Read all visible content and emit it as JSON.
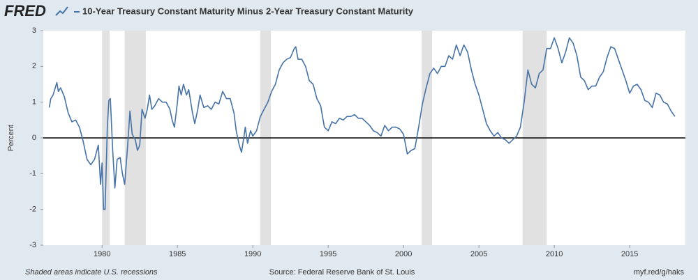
{
  "chart_data": {
    "type": "line",
    "brand": "FRED",
    "title": "10-Year Treasury Constant Maturity Minus 2-Year Treasury Constant Maturity",
    "y_label": "Percent",
    "note": "Shaded areas indicate U.S. recessions",
    "source": "Source: Federal Reserve Bank of St. Louis",
    "link": "myf.red/g/haks",
    "xlim": [
      1976.1,
      2018.7
    ],
    "xticks": [
      1980,
      1985,
      1990,
      1995,
      2000,
      2005,
      2010,
      2015
    ],
    "ylim": [
      -3,
      3
    ],
    "yticks": [
      3,
      2,
      1,
      0,
      -1,
      -2,
      -3
    ],
    "reference_line": 0,
    "recessions": [
      [
        1980.0,
        1980.5
      ],
      [
        1981.5,
        1982.9
      ],
      [
        1990.5,
        1991.2
      ],
      [
        2001.2,
        2001.9
      ],
      [
        2007.9,
        2009.5
      ]
    ],
    "recession_color": "#e1e1e1",
    "x": [
      1976.5,
      1976.6,
      1976.75,
      1977.0,
      1977.1,
      1977.25,
      1977.5,
      1977.75,
      1978.0,
      1978.25,
      1978.5,
      1978.75,
      1979.0,
      1979.25,
      1979.5,
      1979.75,
      1979.9,
      1980.0,
      1980.1,
      1980.2,
      1980.35,
      1980.45,
      1980.55,
      1980.7,
      1980.85,
      1981.0,
      1981.2,
      1981.35,
      1981.5,
      1981.7,
      1981.85,
      1982.0,
      1982.2,
      1982.35,
      1982.5,
      1982.65,
      1982.85,
      1983.0,
      1983.15,
      1983.3,
      1983.5,
      1983.75,
      1984.0,
      1984.25,
      1984.5,
      1984.65,
      1984.8,
      1985.0,
      1985.1,
      1985.25,
      1985.4,
      1985.6,
      1985.75,
      1986.0,
      1986.15,
      1986.35,
      1986.5,
      1986.75,
      1987.0,
      1987.25,
      1987.5,
      1987.75,
      1988.0,
      1988.25,
      1988.5,
      1988.75,
      1988.9,
      1989.1,
      1989.25,
      1989.4,
      1989.5,
      1989.65,
      1989.85,
      1990.0,
      1990.25,
      1990.5,
      1990.75,
      1991.0,
      1991.25,
      1991.5,
      1991.75,
      1992.0,
      1992.25,
      1992.5,
      1992.75,
      1992.85,
      1993.0,
      1993.25,
      1993.5,
      1993.75,
      1994.0,
      1994.25,
      1994.5,
      1994.75,
      1995.0,
      1995.25,
      1995.5,
      1995.75,
      1996.0,
      1996.25,
      1996.5,
      1996.75,
      1997.0,
      1997.25,
      1997.5,
      1997.75,
      1998.0,
      1998.25,
      1998.5,
      1998.75,
      1999.0,
      1999.25,
      1999.5,
      1999.75,
      2000.0,
      2000.25,
      2000.5,
      2000.75,
      2001.0,
      2001.25,
      2001.5,
      2001.75,
      2002.0,
      2002.25,
      2002.5,
      2002.75,
      2003.0,
      2003.25,
      2003.5,
      2003.75,
      2004.0,
      2004.25,
      2004.5,
      2004.75,
      2005.0,
      2005.25,
      2005.5,
      2005.75,
      2006.0,
      2006.25,
      2006.5,
      2006.75,
      2007.0,
      2007.25,
      2007.5,
      2007.75,
      2008.0,
      2008.25,
      2008.5,
      2008.75,
      2009.0,
      2009.25,
      2009.5,
      2009.75,
      2010.0,
      2010.25,
      2010.5,
      2010.75,
      2011.0,
      2011.25,
      2011.5,
      2011.75,
      2012.0,
      2012.25,
      2012.5,
      2012.75,
      2013.0,
      2013.25,
      2013.5,
      2013.75,
      2014.0,
      2014.25,
      2014.5,
      2014.75,
      2015.0,
      2015.25,
      2015.5,
      2015.75,
      2016.0,
      2016.25,
      2016.5,
      2016.75,
      2017.0,
      2017.25,
      2017.5,
      2017.75,
      2018.0
    ],
    "series": [
      {
        "name": "10-Year Treasury Constant Maturity Minus 2-Year Treasury Constant Maturity",
        "color": "#4572a7",
        "values": [
          0.85,
          1.1,
          1.2,
          1.55,
          1.3,
          1.4,
          1.15,
          0.7,
          0.45,
          0.5,
          0.3,
          -0.1,
          -0.6,
          -0.75,
          -0.6,
          -0.2,
          -1.3,
          -0.7,
          -2.0,
          -2.0,
          0.3,
          1.05,
          1.1,
          -0.3,
          -1.4,
          -0.6,
          -0.55,
          -1.0,
          -1.3,
          -0.2,
          0.75,
          0.1,
          -0.05,
          -0.35,
          -0.2,
          0.8,
          0.55,
          0.8,
          1.2,
          0.8,
          0.9,
          1.1,
          1.0,
          1.0,
          0.8,
          0.5,
          0.3,
          1.0,
          1.45,
          1.2,
          1.5,
          1.2,
          1.35,
          0.7,
          0.4,
          0.8,
          1.2,
          0.85,
          0.9,
          0.8,
          1.0,
          0.95,
          1.3,
          1.1,
          1.1,
          0.7,
          0.2,
          -0.2,
          -0.4,
          0.0,
          0.3,
          -0.15,
          0.2,
          0.05,
          0.2,
          0.6,
          0.8,
          1.0,
          1.3,
          1.5,
          1.9,
          2.1,
          2.2,
          2.25,
          2.5,
          2.55,
          2.2,
          2.2,
          2.0,
          1.6,
          1.5,
          1.1,
          0.9,
          0.3,
          0.2,
          0.45,
          0.4,
          0.55,
          0.5,
          0.6,
          0.6,
          0.65,
          0.55,
          0.55,
          0.45,
          0.35,
          0.2,
          0.15,
          0.05,
          0.35,
          0.2,
          0.3,
          0.3,
          0.25,
          0.1,
          -0.45,
          -0.35,
          -0.3,
          0.3,
          0.95,
          1.4,
          1.8,
          1.95,
          1.8,
          2.0,
          2.0,
          2.3,
          2.2,
          2.6,
          2.3,
          2.6,
          2.4,
          1.9,
          1.5,
          1.2,
          0.8,
          0.4,
          0.2,
          0.05,
          0.15,
          0.0,
          -0.05,
          -0.15,
          -0.05,
          0.05,
          0.3,
          1.0,
          1.9,
          1.5,
          1.4,
          1.8,
          1.9,
          2.5,
          2.5,
          2.8,
          2.5,
          2.1,
          2.4,
          2.8,
          2.65,
          2.3,
          1.7,
          1.6,
          1.35,
          1.45,
          1.45,
          1.7,
          1.85,
          2.25,
          2.55,
          2.5,
          2.2,
          1.9,
          1.6,
          1.25,
          1.45,
          1.5,
          1.35,
          1.05,
          1.0,
          0.85,
          1.25,
          1.2,
          1.0,
          0.95,
          0.75,
          0.6
        ]
      }
    ]
  }
}
